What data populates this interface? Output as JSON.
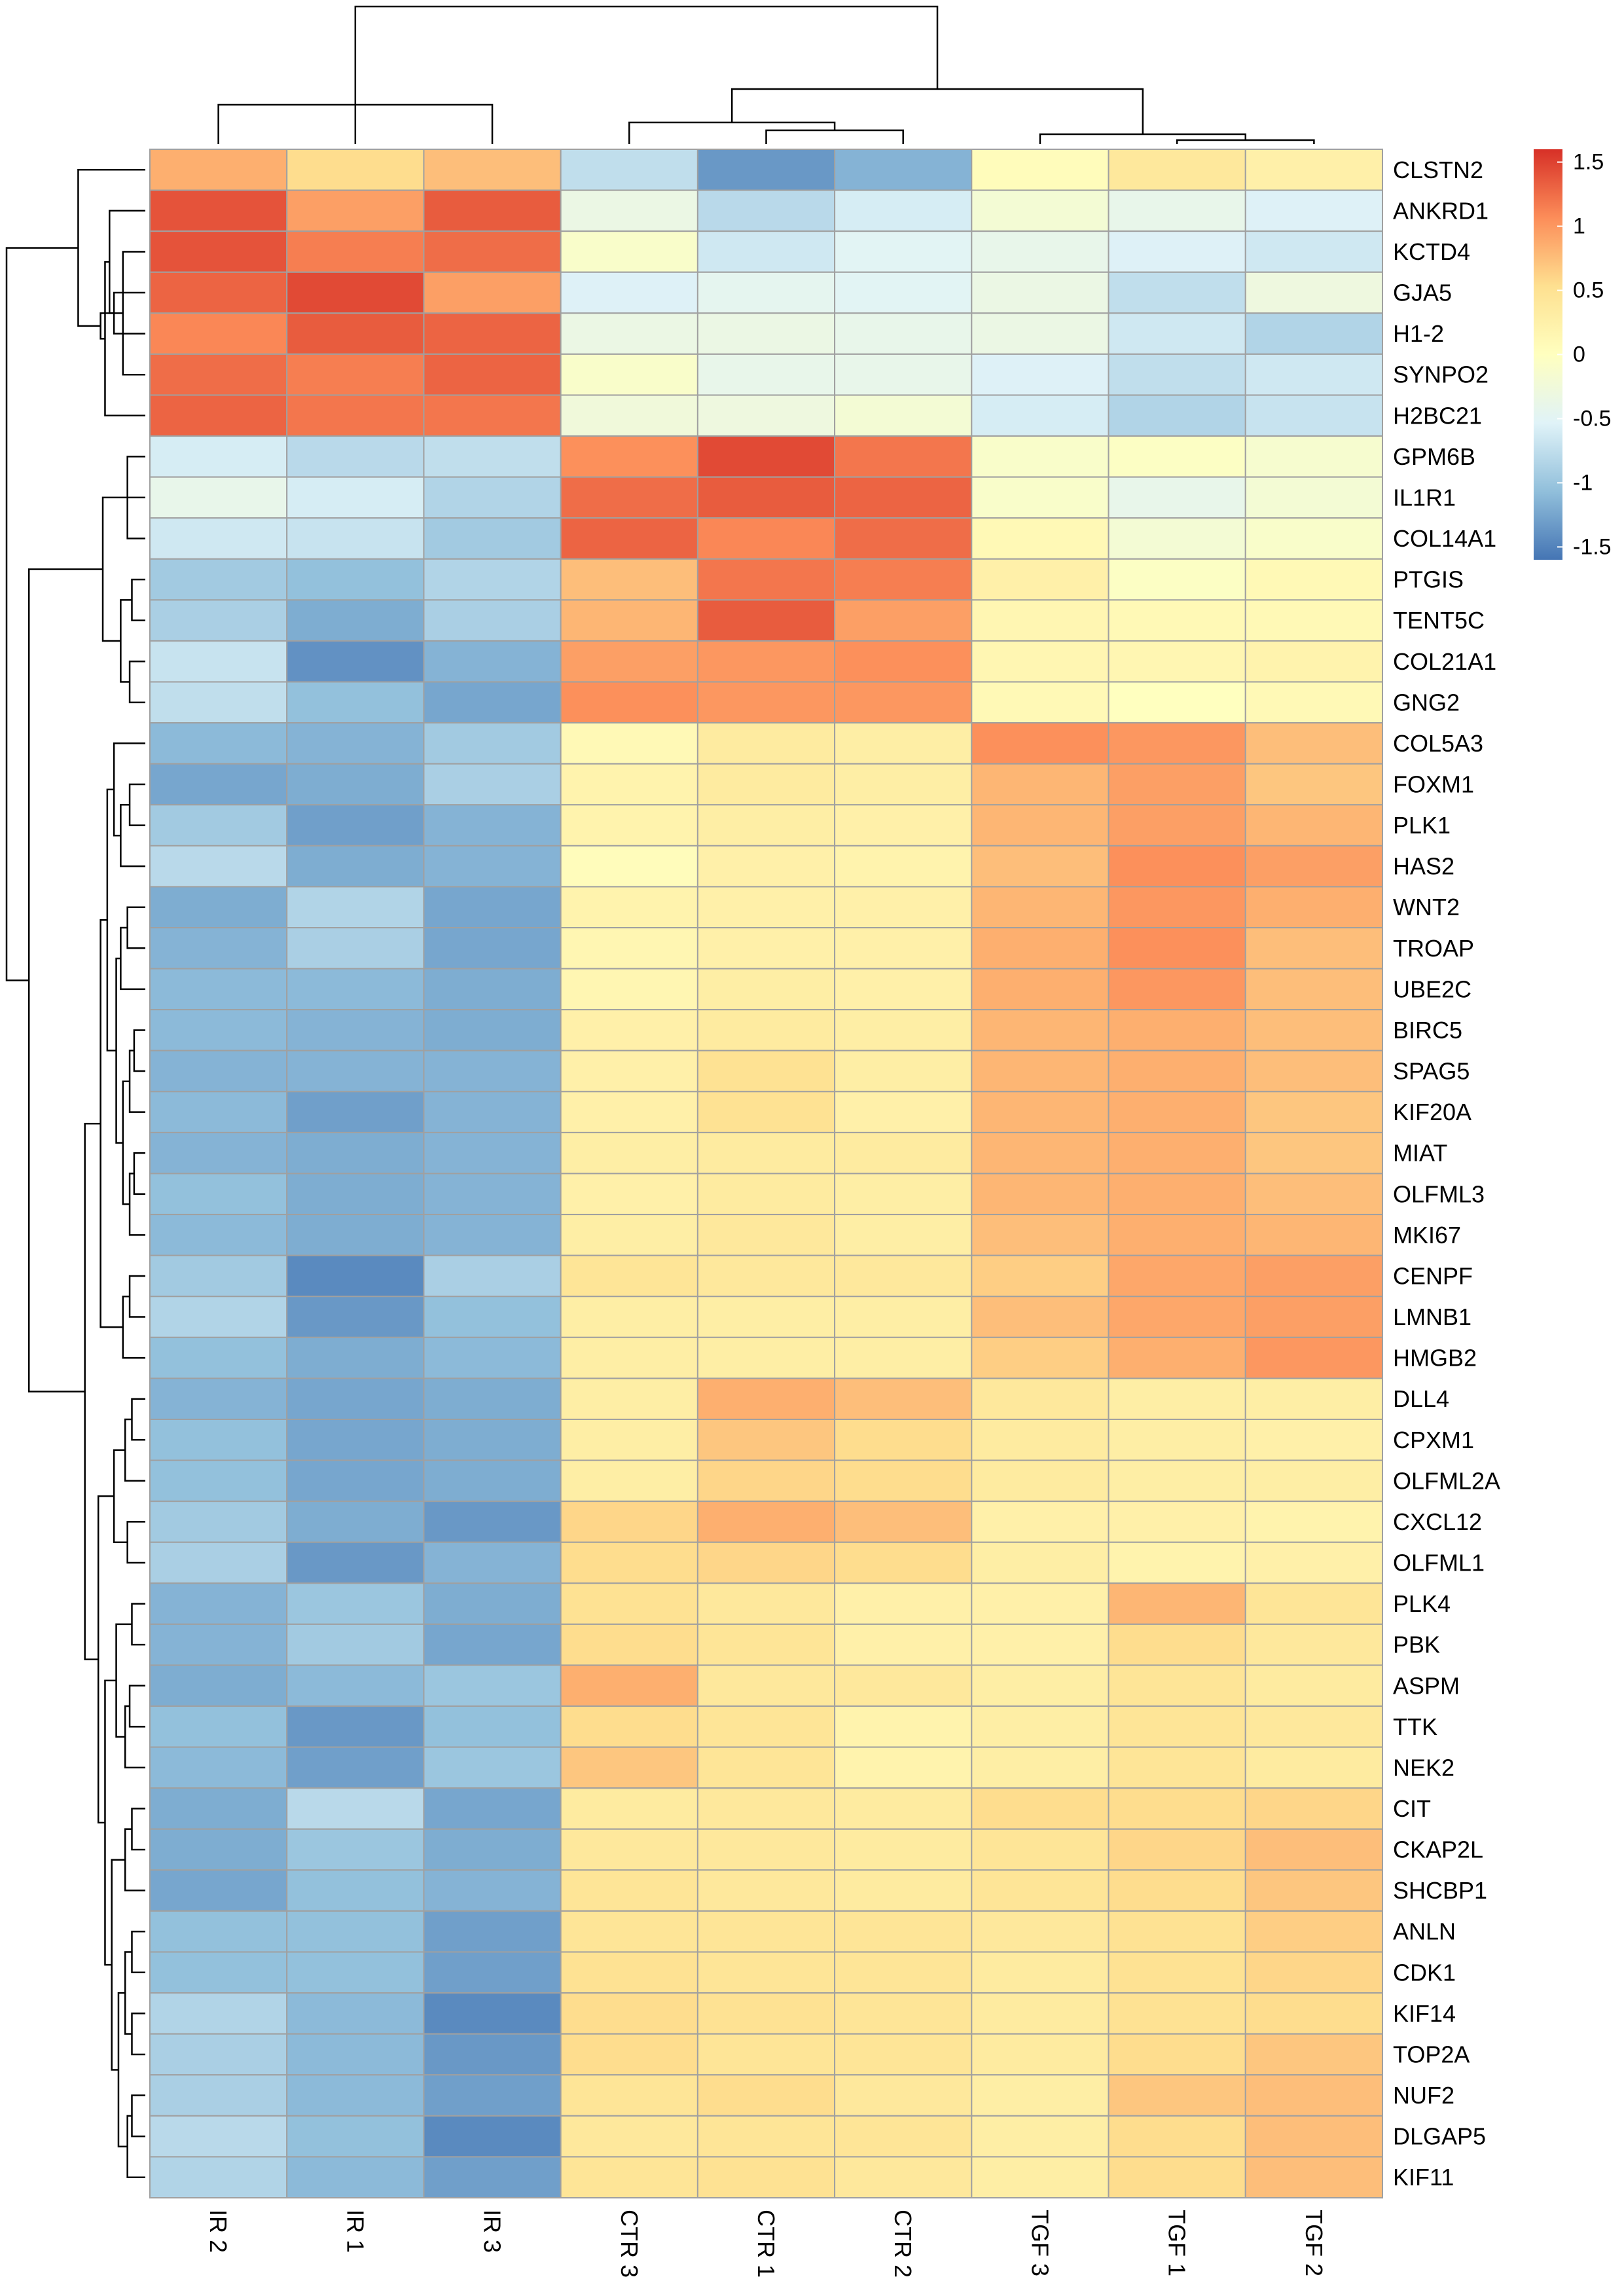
{
  "chart_data": {
    "type": "heatmap",
    "title": "",
    "xlabel": "",
    "ylabel": "",
    "columns": [
      "IR 2",
      "IR 1",
      "IR 3",
      "CTR 3",
      "CTR 1",
      "CTR 2",
      "TGF 3",
      "TGF 1",
      "TGF 2"
    ],
    "rows": [
      "CLSTN2",
      "ANKRD1",
      "KCTD4",
      "GJA5",
      "H1-2",
      "SYNPO2",
      "H2BC21",
      "GPM6B",
      "IL1R1",
      "COL14A1",
      "PTGIS",
      "TENT5C",
      "COL21A1",
      "GNG2",
      "COL5A3",
      "FOXM1",
      "PLK1",
      "HAS2",
      "WNT2",
      "TROAP",
      "UBE2C",
      "BIRC5",
      "SPAG5",
      "KIF20A",
      "MIAT",
      "OLFML3",
      "MKI67",
      "CENPF",
      "LMNB1",
      "HMGB2",
      "DLL4",
      "CPXM1",
      "OLFML2A",
      "CXCL12",
      "OLFML1",
      "PLK4",
      "PBK",
      "ASPM",
      "TTK",
      "NEK2",
      "CIT",
      "CKAP2L",
      "SHCBP1",
      "ANLN",
      "CDK1",
      "KIF14",
      "TOP2A",
      "NUF2",
      "DLGAP5",
      "KIF11"
    ],
    "values": [
      [
        0.85,
        0.55,
        0.75,
        -0.75,
        -1.35,
        -1.15,
        0.05,
        0.4,
        0.25
      ],
      [
        1.4,
        0.95,
        1.35,
        -0.35,
        -0.8,
        -0.6,
        -0.2,
        -0.4,
        -0.55
      ],
      [
        1.4,
        1.15,
        1.25,
        -0.1,
        -0.65,
        -0.5,
        -0.4,
        -0.55,
        -0.65
      ],
      [
        1.3,
        1.45,
        0.95,
        -0.55,
        -0.45,
        -0.5,
        -0.35,
        -0.75,
        -0.3
      ],
      [
        1.1,
        1.35,
        1.3,
        -0.35,
        -0.35,
        -0.4,
        -0.35,
        -0.65,
        -0.85
      ],
      [
        1.25,
        1.15,
        1.3,
        -0.1,
        -0.4,
        -0.4,
        -0.55,
        -0.75,
        -0.65
      ],
      [
        1.3,
        1.2,
        1.2,
        -0.25,
        -0.3,
        -0.2,
        -0.6,
        -0.85,
        -0.7
      ],
      [
        -0.6,
        -0.8,
        -0.75,
        1.05,
        1.45,
        1.2,
        -0.1,
        -0.05,
        -0.15
      ],
      [
        -0.4,
        -0.6,
        -0.85,
        1.25,
        1.35,
        1.3,
        -0.1,
        -0.4,
        -0.2
      ],
      [
        -0.65,
        -0.7,
        -0.95,
        1.3,
        1.1,
        1.25,
        0.1,
        -0.2,
        -0.1
      ],
      [
        -0.95,
        -1.05,
        -0.85,
        0.75,
        1.2,
        1.15,
        0.25,
        -0.05,
        0.1
      ],
      [
        -0.9,
        -1.2,
        -0.9,
        0.8,
        1.35,
        0.95,
        0.15,
        0.1,
        0.1
      ],
      [
        -0.7,
        -1.4,
        -1.15,
        0.95,
        1.0,
        1.05,
        0.15,
        0.15,
        0.2
      ],
      [
        -0.75,
        -1.05,
        -1.25,
        1.05,
        1.0,
        1.0,
        0.1,
        0.0,
        0.1
      ],
      [
        -1.1,
        -1.15,
        -0.95,
        0.1,
        0.35,
        0.3,
        1.05,
        1.0,
        0.75
      ],
      [
        -1.25,
        -1.2,
        -0.9,
        0.2,
        0.35,
        0.3,
        0.8,
        0.95,
        0.7
      ],
      [
        -0.95,
        -1.3,
        -1.15,
        0.2,
        0.3,
        0.25,
        0.8,
        0.95,
        0.8
      ],
      [
        -0.8,
        -1.2,
        -1.15,
        0.05,
        0.25,
        0.2,
        0.75,
        1.05,
        0.95
      ],
      [
        -1.2,
        -0.85,
        -1.25,
        0.2,
        0.25,
        0.25,
        0.8,
        1.0,
        0.85
      ],
      [
        -1.15,
        -0.9,
        -1.25,
        0.15,
        0.25,
        0.25,
        0.85,
        1.05,
        0.75
      ],
      [
        -1.1,
        -1.1,
        -1.2,
        0.15,
        0.3,
        0.25,
        0.85,
        1.0,
        0.75
      ],
      [
        -1.1,
        -1.15,
        -1.2,
        0.25,
        0.35,
        0.3,
        0.8,
        0.85,
        0.75
      ],
      [
        -1.15,
        -1.15,
        -1.15,
        0.25,
        0.5,
        0.3,
        0.8,
        0.85,
        0.75
      ],
      [
        -1.1,
        -1.3,
        -1.15,
        0.25,
        0.5,
        0.25,
        0.8,
        0.85,
        0.7
      ],
      [
        -1.15,
        -1.2,
        -1.15,
        0.3,
        0.35,
        0.35,
        0.8,
        0.85,
        0.7
      ],
      [
        -1.05,
        -1.2,
        -1.15,
        0.25,
        0.35,
        0.3,
        0.8,
        0.85,
        0.75
      ],
      [
        -1.1,
        -1.2,
        -1.15,
        0.3,
        0.4,
        0.3,
        0.75,
        0.85,
        0.8
      ],
      [
        -0.95,
        -1.45,
        -0.9,
        0.45,
        0.4,
        0.4,
        0.65,
        0.9,
        0.95
      ],
      [
        -0.85,
        -1.35,
        -1.05,
        0.3,
        0.3,
        0.3,
        0.75,
        0.9,
        0.95
      ],
      [
        -1.05,
        -1.2,
        -1.1,
        0.3,
        0.3,
        0.3,
        0.65,
        0.85,
        1.0
      ],
      [
        -1.15,
        -1.25,
        -1.2,
        0.3,
        0.85,
        0.75,
        0.4,
        0.3,
        0.3
      ],
      [
        -1.05,
        -1.25,
        -1.2,
        0.3,
        0.7,
        0.55,
        0.35,
        0.3,
        0.25
      ],
      [
        -1.05,
        -1.25,
        -1.2,
        0.3,
        0.6,
        0.55,
        0.35,
        0.3,
        0.3
      ],
      [
        -0.95,
        -1.2,
        -1.35,
        0.6,
        0.85,
        0.75,
        0.25,
        0.25,
        0.2
      ],
      [
        -0.9,
        -1.35,
        -1.15,
        0.55,
        0.6,
        0.55,
        0.3,
        0.2,
        0.25
      ],
      [
        -1.15,
        -1.0,
        -1.2,
        0.5,
        0.4,
        0.25,
        0.25,
        0.8,
        0.45
      ],
      [
        -1.15,
        -0.95,
        -1.25,
        0.55,
        0.45,
        0.25,
        0.25,
        0.55,
        0.4
      ],
      [
        -1.2,
        -1.1,
        -1.0,
        0.85,
        0.4,
        0.4,
        0.3,
        0.45,
        0.35
      ],
      [
        -1.05,
        -1.35,
        -1.05,
        0.55,
        0.45,
        0.2,
        0.3,
        0.45,
        0.4
      ],
      [
        -1.1,
        -1.3,
        -1.0,
        0.7,
        0.45,
        0.2,
        0.3,
        0.45,
        0.35
      ],
      [
        -1.2,
        -0.8,
        -1.25,
        0.35,
        0.4,
        0.35,
        0.55,
        0.55,
        0.6
      ],
      [
        -1.2,
        -1.0,
        -1.2,
        0.4,
        0.4,
        0.35,
        0.45,
        0.6,
        0.75
      ],
      [
        -1.25,
        -1.05,
        -1.15,
        0.45,
        0.4,
        0.35,
        0.45,
        0.55,
        0.7
      ],
      [
        -1.05,
        -1.05,
        -1.3,
        0.45,
        0.45,
        0.45,
        0.4,
        0.5,
        0.65
      ],
      [
        -1.05,
        -1.05,
        -1.3,
        0.5,
        0.45,
        0.45,
        0.35,
        0.5,
        0.6
      ],
      [
        -0.85,
        -1.1,
        -1.45,
        0.55,
        0.5,
        0.45,
        0.35,
        0.5,
        0.55
      ],
      [
        -0.9,
        -1.1,
        -1.35,
        0.55,
        0.45,
        0.45,
        0.35,
        0.55,
        0.7
      ],
      [
        -0.9,
        -1.1,
        -1.3,
        0.45,
        0.55,
        0.4,
        0.3,
        0.7,
        0.75
      ],
      [
        -0.8,
        -1.05,
        -1.45,
        0.4,
        0.45,
        0.45,
        0.3,
        0.55,
        0.75
      ],
      [
        -0.85,
        -1.1,
        -1.3,
        0.45,
        0.5,
        0.4,
        0.3,
        0.55,
        0.75
      ]
    ],
    "color_scale": {
      "min": -1.6,
      "max": 1.6,
      "stops": [
        "#4575B4",
        "#91BFDB",
        "#E0F3F8",
        "#FFFFBF",
        "#FEE090",
        "#FC8D59",
        "#D73027"
      ],
      "ticks": [
        -1.5,
        -1,
        -0.5,
        0,
        0.5,
        1,
        1.5
      ],
      "tick_labels": [
        "-1.5",
        "-1",
        "-0.5",
        "0",
        "0.5",
        "1",
        "1.5"
      ]
    },
    "column_dendrogram": {
      "merges": [
        [
          0,
          2,
          1.0
        ],
        [
          1,
          9,
          1.9
        ],
        [
          4,
          5,
          0.35
        ],
        [
          3,
          11,
          0.55
        ],
        [
          7,
          8,
          0.1
        ],
        [
          6,
          13,
          0.25
        ],
        [
          12,
          14,
          1.4
        ],
        [
          10,
          15,
          3.5
        ]
      ]
    },
    "row_dendrogram": {
      "merges": [
        [
          2,
          5,
          0.5
        ],
        [
          3,
          4,
          0.7
        ],
        [
          1,
          50,
          0.8
        ],
        [
          6,
          52,
          0.9
        ],
        [
          51,
          53,
          1.0
        ],
        [
          0,
          54,
          1.5
        ],
        [
          7,
          9,
          0.4
        ],
        [
          8,
          56,
          0.6
        ],
        [
          10,
          11,
          0.3
        ],
        [
          12,
          13,
          0.35
        ],
        [
          58,
          59,
          0.55
        ],
        [
          57,
          60,
          0.95
        ],
        [
          15,
          16,
          0.35
        ],
        [
          17,
          62,
          0.55
        ],
        [
          14,
          63,
          0.7
        ],
        [
          18,
          19,
          0.4
        ],
        [
          65,
          20,
          0.55
        ],
        [
          21,
          22,
          0.25
        ],
        [
          67,
          23,
          0.35
        ],
        [
          24,
          25,
          0.25
        ],
        [
          69,
          26,
          0.35
        ],
        [
          68,
          70,
          0.5
        ],
        [
          66,
          71,
          0.65
        ],
        [
          64,
          72,
          0.85
        ],
        [
          27,
          28,
          0.35
        ],
        [
          74,
          29,
          0.5
        ],
        [
          73,
          75,
          1.0
        ],
        [
          30,
          31,
          0.3
        ],
        [
          77,
          32,
          0.45
        ],
        [
          33,
          34,
          0.4
        ],
        [
          78,
          79,
          0.7
        ],
        [
          35,
          36,
          0.3
        ],
        [
          37,
          38,
          0.35
        ],
        [
          82,
          39,
          0.45
        ],
        [
          81,
          83,
          0.65
        ],
        [
          40,
          41,
          0.3
        ],
        [
          85,
          42,
          0.45
        ],
        [
          43,
          44,
          0.3
        ],
        [
          45,
          46,
          0.3
        ],
        [
          87,
          88,
          0.45
        ],
        [
          47,
          48,
          0.3
        ],
        [
          90,
          49,
          0.4
        ],
        [
          89,
          91,
          0.6
        ],
        [
          86,
          92,
          0.75
        ],
        [
          84,
          93,
          0.9
        ],
        [
          80,
          94,
          1.05
        ],
        [
          76,
          95,
          1.35
        ],
        [
          61,
          96,
          2.6
        ],
        [
          55,
          97,
          3.1
        ]
      ]
    }
  }
}
